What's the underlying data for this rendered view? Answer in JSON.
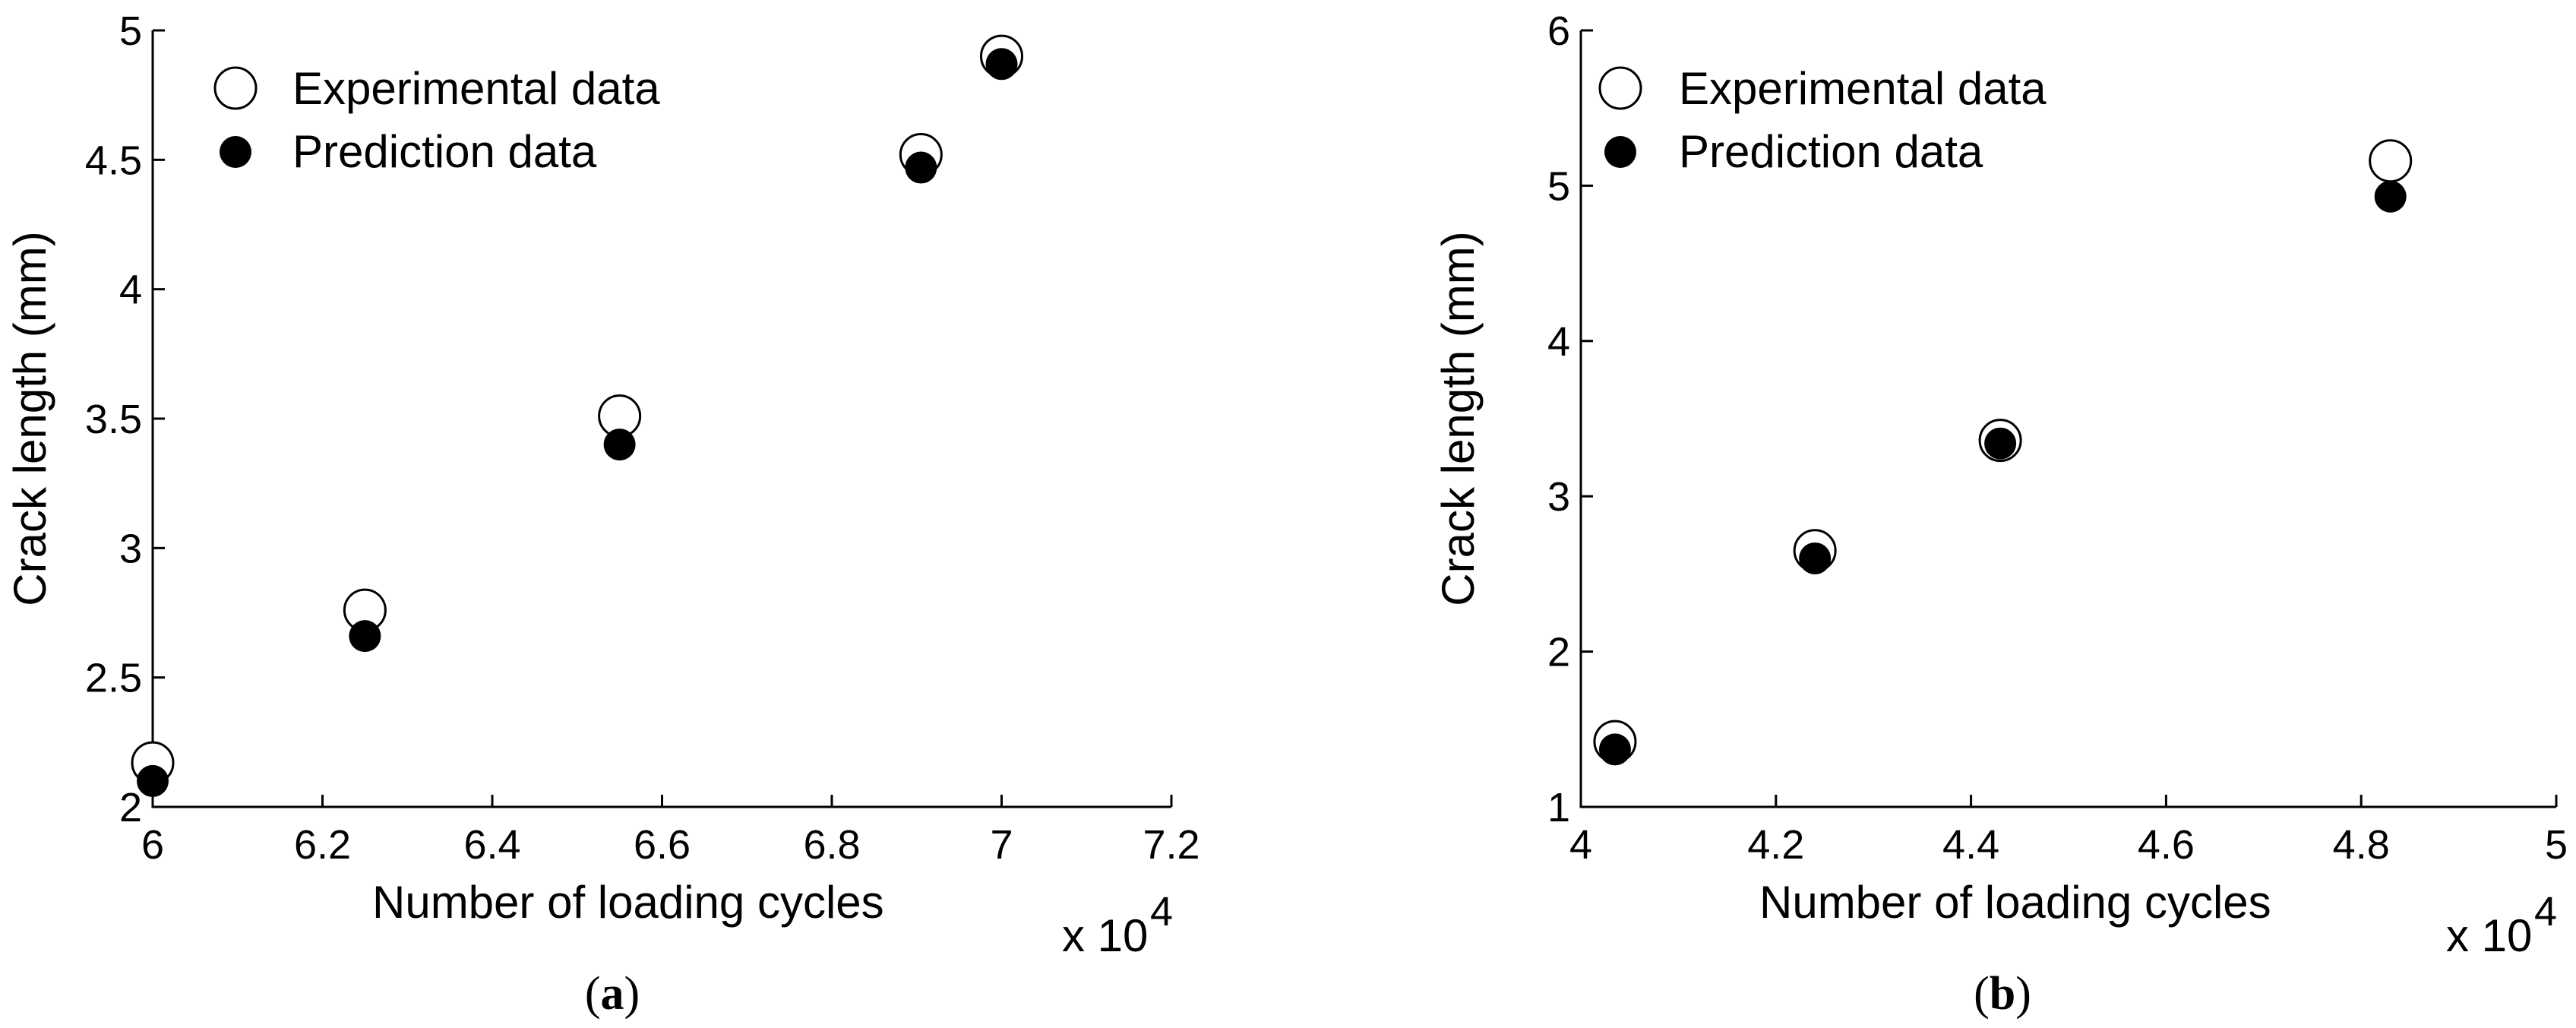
{
  "chart_data": [
    {
      "type": "scatter",
      "panel_label": "a",
      "xlabel": "Number of loading cycles",
      "ylabel": "Crack length (mm)",
      "x_multiplier": "x 10",
      "x_exponent": "4",
      "xlim": [
        6,
        7.2
      ],
      "ylim": [
        2,
        5
      ],
      "x_ticks": [
        "6",
        "6.2",
        "6.4",
        "6.6",
        "6.8",
        "7",
        "7.2"
      ],
      "y_ticks": [
        "2",
        "2.5",
        "3",
        "3.5",
        "4",
        "4.5",
        "5"
      ],
      "legend_position": "top-left",
      "grid": false,
      "series": [
        {
          "name": "Experimental data",
          "marker": "open-circle",
          "x": [
            6.0,
            6.25,
            6.55,
            6.905,
            7.0
          ],
          "y": [
            2.17,
            2.76,
            3.51,
            4.52,
            4.9
          ]
        },
        {
          "name": "Prediction data",
          "marker": "filled-circle",
          "x": [
            6.0,
            6.25,
            6.55,
            6.905,
            7.0
          ],
          "y": [
            2.1,
            2.66,
            3.4,
            4.47,
            4.87
          ]
        }
      ]
    },
    {
      "type": "scatter",
      "panel_label": "b",
      "xlabel": "Number of loading cycles",
      "ylabel": "Crack length (mm)",
      "x_multiplier": "x 10",
      "x_exponent": "4",
      "xlim": [
        4,
        5
      ],
      "ylim": [
        1,
        6
      ],
      "x_ticks": [
        "4",
        "4.2",
        "4.4",
        "4.6",
        "4.8",
        "5"
      ],
      "y_ticks": [
        "1",
        "2",
        "3",
        "4",
        "5",
        "6"
      ],
      "legend_position": "top-left",
      "grid": false,
      "series": [
        {
          "name": "Experimental data",
          "marker": "open-circle",
          "x": [
            4.035,
            4.24,
            4.43,
            4.83
          ],
          "y": [
            1.42,
            2.65,
            3.36,
            5.16
          ]
        },
        {
          "name": "Prediction data",
          "marker": "filled-circle",
          "x": [
            4.035,
            4.24,
            4.43,
            4.83
          ],
          "y": [
            1.37,
            2.6,
            3.34,
            4.93
          ]
        }
      ]
    }
  ]
}
